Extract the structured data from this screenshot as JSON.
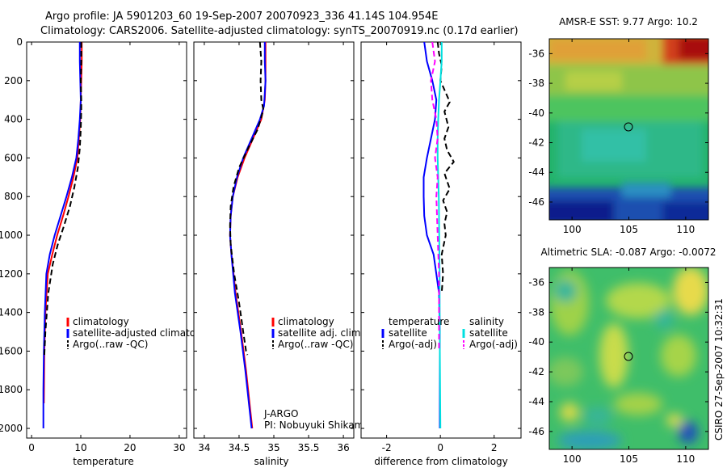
{
  "header": {
    "line1": "Argo profile: JA 5901203_60 19-Sep-2007 20070923_336 41.14S 104.954E",
    "line2": "Climatology: CARS2006. Satellite-adjusted climatology: synTS_20070919.nc (0.17d earlier)"
  },
  "side_label": "CSIRO 27-Sep-2007 10:32:31",
  "credit": {
    "line1": "J-ARGO",
    "line2": "PI: Nobuyuki Shikama"
  },
  "chart_data": [
    {
      "id": "temperature",
      "type": "line",
      "xlabel": "temperature",
      "xlim": [
        -1,
        31.5
      ],
      "ylim": [
        0,
        2050
      ],
      "xticks": [
        0,
        10,
        20,
        30
      ],
      "yticks": [
        0,
        200,
        400,
        600,
        800,
        1000,
        1200,
        1400,
        1600,
        1800,
        2000
      ],
      "legend": [
        "climatology",
        "satellite-adjusted climatology",
        "Argo(..raw -QC)"
      ],
      "series": [
        {
          "name": "climatology",
          "color": "#ff0000",
          "dash": "",
          "x": [
            10.2,
            10.2,
            10.1,
            10.0,
            9.9,
            9.6,
            9.3,
            8.5,
            7.5,
            6.4,
            5.2,
            4.2,
            3.3,
            2.8,
            2.6,
            2.5
          ],
          "y": [
            0,
            100,
            200,
            300,
            400,
            500,
            600,
            700,
            800,
            900,
            1000,
            1100,
            1200,
            1400,
            1600,
            1870
          ]
        },
        {
          "name": "satellite-adjusted climatology",
          "color": "#0000ff",
          "dash": "",
          "x": [
            9.8,
            9.8,
            9.9,
            10.0,
            9.8,
            9.5,
            9.1,
            8.2,
            7.1,
            5.9,
            4.7,
            3.7,
            3.0,
            2.7,
            2.5,
            2.4,
            2.4
          ],
          "y": [
            0,
            100,
            200,
            300,
            400,
            500,
            600,
            700,
            800,
            900,
            1000,
            1100,
            1200,
            1400,
            1600,
            1800,
            2000
          ]
        },
        {
          "name": "Argo(..raw -QC)",
          "color": "#000000",
          "dash": "7,4",
          "x": [
            10.1,
            10.1,
            10.0,
            10.1,
            10.1,
            10.0,
            9.8,
            9.4,
            8.7,
            7.8,
            6.6,
            5.3,
            4.3,
            3.4,
            2.8,
            2.6
          ],
          "y": [
            0,
            100,
            200,
            300,
            350,
            450,
            550,
            650,
            750,
            850,
            950,
            1050,
            1150,
            1300,
            1500,
            1620
          ]
        }
      ]
    },
    {
      "id": "salinity",
      "type": "line",
      "xlabel": "salinity",
      "xlim": [
        33.85,
        36.15
      ],
      "ylim": [
        0,
        2050
      ],
      "xticks": [
        34,
        34.5,
        35,
        35.5,
        36
      ],
      "legend": [
        "climatology",
        "satellite adj. clim.",
        "Argo(..raw -QC)"
      ],
      "series": [
        {
          "name": "climatology",
          "color": "#ff0000",
          "dash": "",
          "x": [
            34.88,
            34.88,
            34.88,
            34.87,
            34.82,
            34.7,
            34.58,
            34.48,
            34.41,
            34.38,
            34.37,
            34.39,
            34.45,
            34.53,
            34.6,
            34.66,
            34.69
          ],
          "y": [
            0,
            100,
            200,
            300,
            400,
            500,
            600,
            700,
            800,
            900,
            1000,
            1100,
            1300,
            1500,
            1700,
            1900,
            2000
          ]
        },
        {
          "name": "satellite adj. clim.",
          "color": "#0000ff",
          "dash": "",
          "x": [
            34.87,
            34.87,
            34.88,
            34.86,
            34.8,
            34.68,
            34.56,
            34.47,
            34.41,
            34.38,
            34.37,
            34.39,
            34.44,
            34.52,
            34.59,
            34.65,
            34.68
          ],
          "y": [
            0,
            100,
            200,
            330,
            400,
            500,
            600,
            700,
            800,
            900,
            1000,
            1100,
            1300,
            1500,
            1700,
            1900,
            2000
          ]
        },
        {
          "name": "Argo(..raw -QC)",
          "color": "#000000",
          "dash": "7,4",
          "x": [
            34.8,
            34.82,
            34.81,
            34.82,
            34.85,
            34.77,
            34.63,
            34.5,
            34.42,
            34.38,
            34.37,
            34.38,
            34.43,
            34.5,
            34.56,
            34.6,
            34.62
          ],
          "y": [
            0,
            100,
            200,
            300,
            350,
            450,
            550,
            650,
            750,
            850,
            950,
            1050,
            1200,
            1350,
            1500,
            1600,
            1620
          ]
        }
      ]
    },
    {
      "id": "difference",
      "type": "line",
      "xlabel": "difference from climatology",
      "xlim": [
        -2.95,
        3.0
      ],
      "ylim": [
        0,
        2050
      ],
      "xticks": [
        -2,
        0,
        2
      ],
      "legend_headers": [
        "temperature",
        "salinity"
      ],
      "legend": [
        "satellite",
        "Argo(-adj)",
        "satellite",
        "Argo(-adj)"
      ],
      "series": [
        {
          "name": "temperature satellite",
          "color": "#0000ff",
          "dash": "",
          "x": [
            -0.6,
            -0.5,
            -0.3,
            -0.15,
            -0.2,
            -0.35,
            -0.5,
            -0.62,
            -0.62,
            -0.6,
            -0.5,
            -0.25,
            -0.05,
            -0.02,
            -0.02,
            -0.02
          ],
          "y": [
            0,
            100,
            200,
            300,
            400,
            500,
            600,
            700,
            800,
            900,
            1000,
            1100,
            1300,
            1500,
            1800,
            2000
          ]
        },
        {
          "name": "temperature Argo(-adj)",
          "color": "#000000",
          "dash": "7,4",
          "x": [
            -0.1,
            -0.05,
            0.05,
            0.0,
            0.35,
            0.15,
            0.3,
            0.15,
            0.25,
            0.5,
            0.15,
            0.35,
            0.1,
            0.25,
            0.15,
            0.2,
            0.05,
            0.1,
            0.05
          ],
          "y": [
            0,
            60,
            120,
            200,
            310,
            360,
            440,
            500,
            560,
            620,
            680,
            760,
            820,
            880,
            940,
            1000,
            1100,
            1200,
            1300
          ]
        },
        {
          "name": "salinity satellite",
          "color": "#00e0e0",
          "dash": "",
          "x": [
            0.05,
            0.05,
            0.0,
            -0.05,
            -0.08,
            -0.1,
            -0.1,
            -0.08,
            -0.06,
            -0.05,
            -0.03,
            -0.02,
            0.0
          ],
          "y": [
            0,
            100,
            200,
            300,
            400,
            500,
            600,
            700,
            800,
            900,
            1200,
            1600,
            2000
          ]
        },
        {
          "name": "salinity Argo(-adj)",
          "color": "#ff00ff",
          "dash": "7,4",
          "x": [
            -0.3,
            -0.2,
            -0.35,
            -0.3,
            -0.15,
            -0.1,
            -0.2,
            -0.1,
            -0.15,
            -0.1,
            -0.05,
            -0.05
          ],
          "y": [
            0,
            100,
            200,
            300,
            400,
            500,
            600,
            700,
            800,
            1000,
            1200,
            1600
          ]
        }
      ]
    },
    {
      "id": "sst_map",
      "type": "heatmap",
      "title": "AMSR-E SST: 9.77 Argo: 10.2",
      "xlim": [
        98,
        112
      ],
      "ylim": [
        -47.2,
        -35
      ],
      "xticks": [
        100,
        105,
        110
      ],
      "yticks": [
        -36,
        -38,
        -40,
        -42,
        -44,
        -46
      ],
      "marker": {
        "lon": 104.954,
        "lat": -41.14
      }
    },
    {
      "id": "sla_map",
      "type": "heatmap",
      "title": "Altimetric SLA: -0.087 Argo: -0.0072",
      "xlim": [
        98,
        112
      ],
      "ylim": [
        -47.2,
        -35
      ],
      "xticks": [
        100,
        105,
        110
      ],
      "yticks": [
        -36,
        -38,
        -40,
        -42,
        -44,
        -46
      ],
      "marker": {
        "lon": 104.954,
        "lat": -41.14
      }
    }
  ]
}
